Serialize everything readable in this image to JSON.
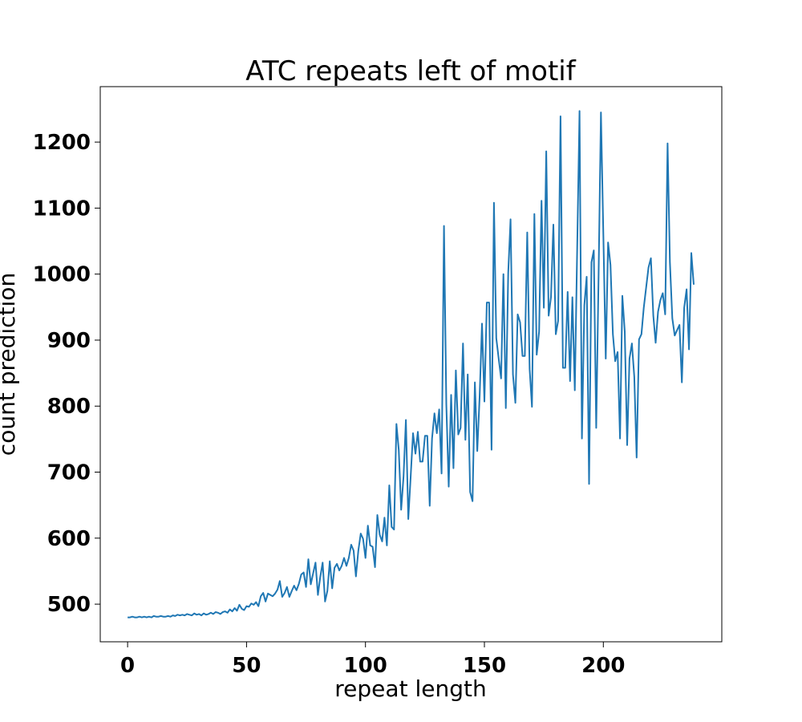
{
  "chart_data": {
    "type": "line",
    "title": "ATC repeats left of motif",
    "xlabel": "repeat length",
    "ylabel": "count prediction",
    "xlim": [
      -11.5,
      249.8
    ],
    "ylim": [
      443,
      1284
    ],
    "xticks": [
      0,
      50,
      100,
      150,
      200
    ],
    "yticks": [
      500,
      600,
      700,
      800,
      900,
      1000,
      1100,
      1200
    ],
    "grid": false,
    "series": [
      {
        "name": "count prediction",
        "color": "#1f77b4",
        "values": [
          480,
          480,
          481,
          480,
          480,
          481,
          480,
          481,
          480,
          481,
          480,
          482,
          481,
          481,
          482,
          481,
          481,
          482,
          481,
          483,
          482,
          484,
          483,
          484,
          483,
          485,
          484,
          483,
          486,
          484,
          485,
          483,
          486,
          484,
          485,
          487,
          485,
          488,
          487,
          485,
          488,
          489,
          487,
          492,
          489,
          494,
          490,
          499,
          493,
          491,
          497,
          496,
          501,
          499,
          503,
          497,
          512,
          517,
          504,
          516,
          514,
          512,
          516,
          522,
          535,
          511,
          517,
          526,
          511,
          520,
          528,
          521,
          531,
          545,
          548,
          526,
          568,
          530,
          547,
          563,
          514,
          541,
          563,
          504,
          520,
          565,
          524,
          555,
          561,
          551,
          558,
          570,
          558,
          570,
          590,
          581,
          542,
          581,
          607,
          599,
          570,
          619,
          589,
          587,
          556,
          635,
          605,
          595,
          631,
          589,
          680,
          617,
          613,
          773,
          734,
          643,
          694,
          779,
          629,
          694,
          759,
          728,
          761,
          716,
          716,
          755,
          755,
          649,
          751,
          789,
          759,
          795,
          698,
          1073,
          803,
          678,
          817,
          706,
          854,
          757,
          767,
          895,
          749,
          848,
          670,
          656,
          836,
          732,
          816,
          925,
          807,
          957,
          957,
          734,
          1108,
          903,
          872,
          842,
          1000,
          797,
          1002,
          1083,
          848,
          805,
          939,
          927,
          876,
          876,
          1063,
          856,
          799,
          1091,
          878,
          913,
          1111,
          949,
          1186,
          937,
          965,
          1075,
          909,
          929,
          1239,
          858,
          858,
          973,
          838,
          965,
          824,
          1040,
          1247,
          751,
          953,
          996,
          682,
          1018,
          1036,
          767,
          1000,
          1245,
          1060,
          872,
          1048,
          1014,
          909,
          868,
          882,
          751,
          967,
          913,
          741,
          872,
          895,
          844,
          722,
          901,
          909,
          949,
          980,
          1010,
          1024,
          937,
          896,
          943,
          961,
          971,
          939,
          1198,
          1018,
          933,
          907,
          915,
          923,
          836,
          949,
          977,
          886,
          1032,
          984
        ]
      }
    ]
  }
}
